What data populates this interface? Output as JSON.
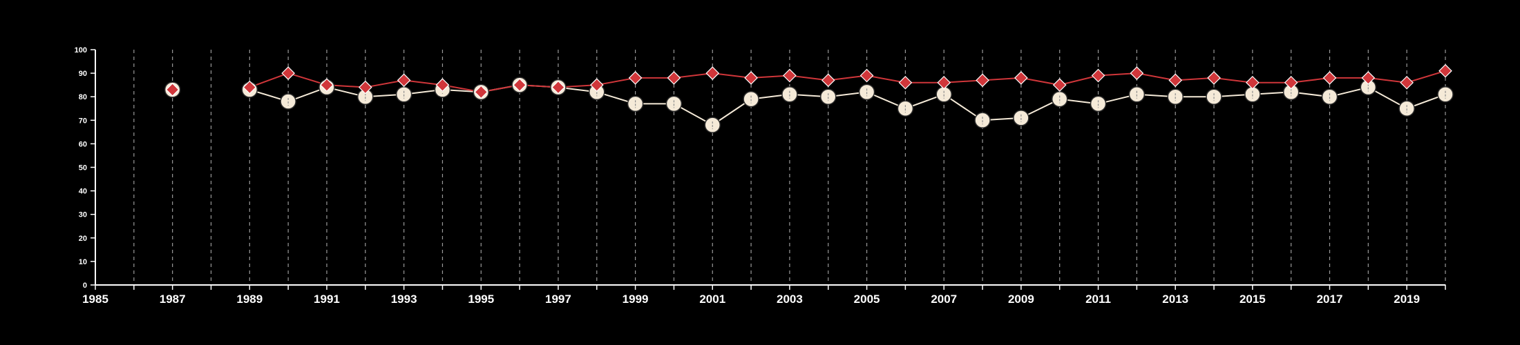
{
  "chart_data": {
    "type": "line",
    "title": "",
    "xlabel": "",
    "ylabel": "",
    "xlim": [
      1985,
      2020
    ],
    "ylim": [
      0,
      100
    ],
    "grid": "vertical dashed lines at each year",
    "legend": "none",
    "x_ticks": [
      "1985",
      "1987",
      "1989",
      "1991",
      "1993",
      "1995",
      "1997",
      "1999",
      "2001",
      "2003",
      "2005",
      "2007",
      "2009",
      "2011",
      "2013",
      "2015",
      "2017",
      "2019"
    ],
    "y_ticks": [
      "0",
      "10",
      "20",
      "30",
      "40",
      "50",
      "60",
      "70",
      "80",
      "90",
      "100"
    ],
    "x": [
      1987,
      1989,
      1990,
      1991,
      1992,
      1993,
      1994,
      1995,
      1996,
      1997,
      1998,
      1999,
      2000,
      2001,
      2002,
      2003,
      2004,
      2005,
      2006,
      2007,
      2008,
      2009,
      2010,
      2011,
      2012,
      2013,
      2014,
      2015,
      2016,
      2017,
      2018,
      2019,
      2020
    ],
    "series": [
      {
        "color": "#f5ead8",
        "marker": "circle",
        "values": [
          83,
          83,
          78,
          84,
          80,
          81,
          83,
          82,
          85,
          84,
          82,
          77,
          77,
          68,
          79,
          81,
          80,
          82,
          75,
          81,
          70,
          71,
          79,
          77,
          81,
          80,
          80,
          81,
          82,
          80,
          84,
          75,
          81
        ]
      },
      {
        "color": "#d0363a",
        "marker": "diamond",
        "values": [
          83,
          84,
          90,
          85,
          84,
          87,
          85,
          82,
          85,
          84,
          85,
          88,
          88,
          90,
          88,
          89,
          87,
          89,
          86,
          86,
          87,
          88,
          85,
          89,
          90,
          87,
          88,
          86,
          86,
          88,
          88,
          86,
          91
        ]
      }
    ]
  }
}
